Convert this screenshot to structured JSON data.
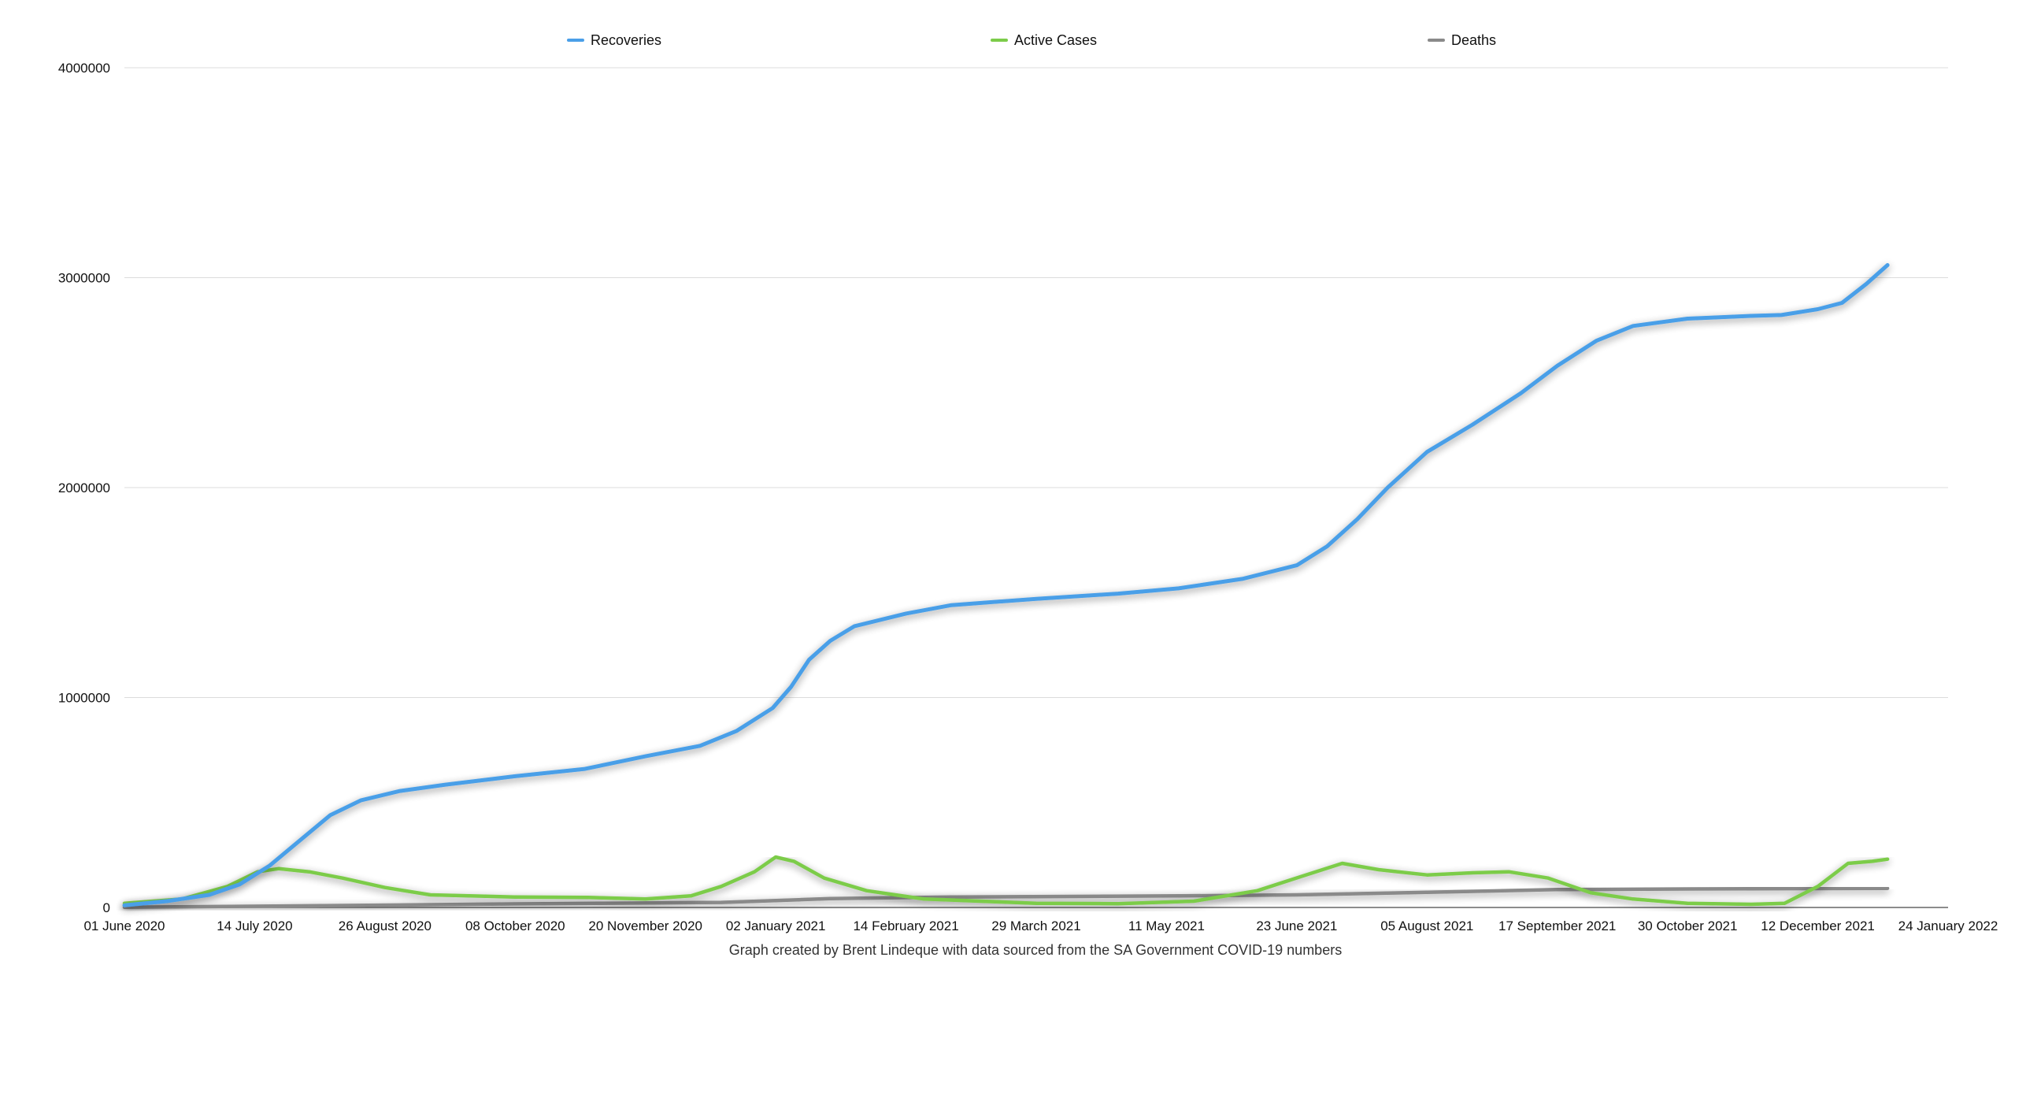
{
  "chart_data": {
    "type": "line",
    "title": "",
    "xlabel": "",
    "ylabel": "",
    "caption": "Graph created by Brent Lindeque with data sourced from the SA Government COVID-19 numbers",
    "legend_position": "top",
    "grid": true,
    "xlim": [
      "2020-06-01",
      "2022-01-24"
    ],
    "ylim": [
      0,
      4000000
    ],
    "x_ticks": [
      "01 June 2020",
      "14 July 2020",
      "26 August 2020",
      "08 October 2020",
      "20 November 2020",
      "02 January 2021",
      "14 February 2021",
      "29 March 2021",
      "11 May 2021",
      "23 June 2021",
      "05 August 2021",
      "17 September 2021",
      "30 October 2021",
      "12 December 2021",
      "24 January 2022"
    ],
    "y_ticks": [
      "0",
      "1000000",
      "2000000",
      "3000000",
      "4000000"
    ],
    "series": [
      {
        "name": "Recoveries",
        "color": "#4a9fe8",
        "points": [
          [
            "2020-06-01",
            10000
          ],
          [
            "2020-06-15",
            30000
          ],
          [
            "2020-06-29",
            60000
          ],
          [
            "2020-07-09",
            110000
          ],
          [
            "2020-07-19",
            200000
          ],
          [
            "2020-07-29",
            320000
          ],
          [
            "2020-08-08",
            440000
          ],
          [
            "2020-08-18",
            510000
          ],
          [
            "2020-08-31",
            555000
          ],
          [
            "2020-09-15",
            585000
          ],
          [
            "2020-10-08",
            625000
          ],
          [
            "2020-10-31",
            660000
          ],
          [
            "2020-11-20",
            720000
          ],
          [
            "2020-12-08",
            770000
          ],
          [
            "2020-12-20",
            840000
          ],
          [
            "2021-01-01",
            950000
          ],
          [
            "2021-01-07",
            1050000
          ],
          [
            "2021-01-13",
            1180000
          ],
          [
            "2021-01-20",
            1270000
          ],
          [
            "2021-01-28",
            1340000
          ],
          [
            "2021-02-14",
            1400000
          ],
          [
            "2021-03-01",
            1440000
          ],
          [
            "2021-03-29",
            1470000
          ],
          [
            "2021-04-25",
            1495000
          ],
          [
            "2021-05-15",
            1520000
          ],
          [
            "2021-06-05",
            1565000
          ],
          [
            "2021-06-23",
            1630000
          ],
          [
            "2021-07-03",
            1720000
          ],
          [
            "2021-07-13",
            1850000
          ],
          [
            "2021-07-23",
            2000000
          ],
          [
            "2021-08-05",
            2170000
          ],
          [
            "2021-08-20",
            2300000
          ],
          [
            "2021-09-05",
            2450000
          ],
          [
            "2021-09-17",
            2580000
          ],
          [
            "2021-09-30",
            2700000
          ],
          [
            "2021-10-12",
            2770000
          ],
          [
            "2021-10-30",
            2805000
          ],
          [
            "2021-11-20",
            2818000
          ],
          [
            "2021-11-30",
            2822000
          ],
          [
            "2021-12-12",
            2850000
          ],
          [
            "2021-12-20",
            2880000
          ],
          [
            "2021-12-28",
            2970000
          ],
          [
            "2022-01-04",
            3060000
          ]
        ]
      },
      {
        "name": "Active Cases",
        "color": "#7ccc4a",
        "points": [
          [
            "2020-06-01",
            20000
          ],
          [
            "2020-06-20",
            40000
          ],
          [
            "2020-07-05",
            100000
          ],
          [
            "2020-07-15",
            170000
          ],
          [
            "2020-07-22",
            185000
          ],
          [
            "2020-08-01",
            170000
          ],
          [
            "2020-08-12",
            140000
          ],
          [
            "2020-08-26",
            95000
          ],
          [
            "2020-09-10",
            60000
          ],
          [
            "2020-10-08",
            50000
          ],
          [
            "2020-11-01",
            48000
          ],
          [
            "2020-11-20",
            40000
          ],
          [
            "2020-12-05",
            55000
          ],
          [
            "2020-12-15",
            100000
          ],
          [
            "2020-12-26",
            170000
          ],
          [
            "2021-01-02",
            240000
          ],
          [
            "2021-01-08",
            220000
          ],
          [
            "2021-01-18",
            140000
          ],
          [
            "2021-02-01",
            80000
          ],
          [
            "2021-02-20",
            40000
          ],
          [
            "2021-03-29",
            20000
          ],
          [
            "2021-04-25",
            18000
          ],
          [
            "2021-05-20",
            30000
          ],
          [
            "2021-06-10",
            80000
          ],
          [
            "2021-06-25",
            150000
          ],
          [
            "2021-07-08",
            210000
          ],
          [
            "2021-07-20",
            180000
          ],
          [
            "2021-08-05",
            155000
          ],
          [
            "2021-08-20",
            165000
          ],
          [
            "2021-09-01",
            170000
          ],
          [
            "2021-09-14",
            140000
          ],
          [
            "2021-09-28",
            70000
          ],
          [
            "2021-10-12",
            40000
          ],
          [
            "2021-10-30",
            20000
          ],
          [
            "2021-11-20",
            15000
          ],
          [
            "2021-12-01",
            20000
          ],
          [
            "2021-12-12",
            100000
          ],
          [
            "2021-12-22",
            210000
          ],
          [
            "2021-12-30",
            220000
          ],
          [
            "2022-01-04",
            230000
          ]
        ]
      },
      {
        "name": "Deaths",
        "color": "#8a8a8a",
        "points": [
          [
            "2020-06-01",
            800
          ],
          [
            "2020-08-01",
            8000
          ],
          [
            "2020-10-08",
            17000
          ],
          [
            "2020-12-15",
            24000
          ],
          [
            "2021-01-20",
            42000
          ],
          [
            "2021-03-01",
            50000
          ],
          [
            "2021-05-15",
            55000
          ],
          [
            "2021-06-23",
            60000
          ],
          [
            "2021-08-05",
            72000
          ],
          [
            "2021-09-17",
            85000
          ],
          [
            "2021-10-30",
            88000
          ],
          [
            "2021-12-12",
            90000
          ],
          [
            "2022-01-04",
            91000
          ]
        ]
      }
    ]
  }
}
